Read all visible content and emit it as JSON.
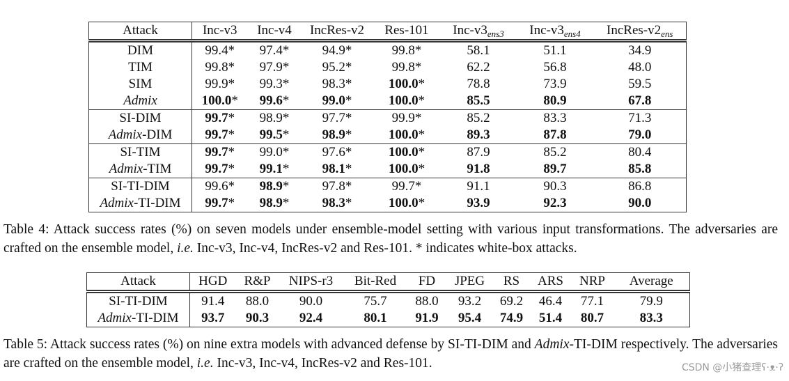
{
  "table4": {
    "header": [
      [
        {
          "text": "Attack"
        }
      ],
      [
        {
          "text": "Inc-v3"
        }
      ],
      [
        {
          "text": "Inc-v4"
        }
      ],
      [
        {
          "text": "IncRes-v2"
        }
      ],
      [
        {
          "text": "Res-101"
        }
      ],
      [
        {
          "text": "Inc-v3"
        },
        {
          "text": "ens3",
          "sub": true
        }
      ],
      [
        {
          "text": "Inc-v3"
        },
        {
          "text": "ens4",
          "sub": true
        }
      ],
      [
        {
          "text": "IncRes-v2"
        },
        {
          "text": "ens",
          "sub": true
        }
      ]
    ],
    "groups": [
      [
        {
          "attack": [
            {
              "text": "DIM"
            }
          ],
          "cells": [
            {
              "value": "99.4",
              "mark": "*"
            },
            {
              "value": "97.4",
              "mark": "*"
            },
            {
              "value": "94.9",
              "mark": "*"
            },
            {
              "value": "99.8",
              "mark": "*"
            },
            {
              "value": "58.1"
            },
            {
              "value": "51.1"
            },
            {
              "value": "34.9"
            }
          ]
        },
        {
          "attack": [
            {
              "text": "TIM"
            }
          ],
          "cells": [
            {
              "value": "99.8",
              "mark": "*"
            },
            {
              "value": "97.9",
              "mark": "*"
            },
            {
              "value": "95.2",
              "mark": "*"
            },
            {
              "value": "99.8",
              "mark": "*"
            },
            {
              "value": "62.2"
            },
            {
              "value": "56.8"
            },
            {
              "value": "48.0"
            }
          ]
        },
        {
          "attack": [
            {
              "text": "SIM"
            }
          ],
          "cells": [
            {
              "value": "99.9",
              "mark": "*"
            },
            {
              "value": "99.3",
              "mark": "*"
            },
            {
              "value": "98.3",
              "mark": "*"
            },
            {
              "value": "100.0",
              "mark": "*",
              "bold": true
            },
            {
              "value": "78.8"
            },
            {
              "value": "73.9"
            },
            {
              "value": "59.5"
            }
          ]
        },
        {
          "attack": [
            {
              "text": "Admix",
              "italic": true
            }
          ],
          "cells": [
            {
              "value": "100.0",
              "mark": "*",
              "bold": true
            },
            {
              "value": "99.6",
              "mark": "*",
              "bold": true
            },
            {
              "value": "99.0",
              "mark": "*",
              "bold": true
            },
            {
              "value": "100.0",
              "mark": "*",
              "bold": true
            },
            {
              "value": "85.5",
              "bold": true
            },
            {
              "value": "80.9",
              "bold": true
            },
            {
              "value": "67.8",
              "bold": true
            }
          ]
        }
      ],
      [
        {
          "attack": [
            {
              "text": "SI-DIM"
            }
          ],
          "cells": [
            {
              "value": "99.7",
              "mark": "*",
              "bold": true
            },
            {
              "value": "98.9",
              "mark": "*"
            },
            {
              "value": "97.7",
              "mark": "*"
            },
            {
              "value": "99.9",
              "mark": "*"
            },
            {
              "value": "85.2"
            },
            {
              "value": "83.3"
            },
            {
              "value": "71.3"
            }
          ]
        },
        {
          "attack": [
            {
              "text": "Admix",
              "italic": true
            },
            {
              "text": "-DIM"
            }
          ],
          "cells": [
            {
              "value": "99.7",
              "mark": "*",
              "bold": true
            },
            {
              "value": "99.5",
              "mark": "*",
              "bold": true
            },
            {
              "value": "98.9",
              "mark": "*",
              "bold": true
            },
            {
              "value": "100.0",
              "mark": "*",
              "bold": true
            },
            {
              "value": "89.3",
              "bold": true
            },
            {
              "value": "87.8",
              "bold": true
            },
            {
              "value": "79.0",
              "bold": true
            }
          ]
        }
      ],
      [
        {
          "attack": [
            {
              "text": "SI-TIM"
            }
          ],
          "cells": [
            {
              "value": "99.7",
              "mark": "*",
              "bold": true
            },
            {
              "value": "99.0",
              "mark": "*"
            },
            {
              "value": "97.6",
              "mark": "*"
            },
            {
              "value": "100.0",
              "mark": "*",
              "bold": true
            },
            {
              "value": "87.9"
            },
            {
              "value": "85.2"
            },
            {
              "value": "80.4"
            }
          ]
        },
        {
          "attack": [
            {
              "text": "Admix",
              "italic": true
            },
            {
              "text": "-TIM"
            }
          ],
          "cells": [
            {
              "value": "99.7",
              "mark": "*",
              "bold": true
            },
            {
              "value": "99.1",
              "mark": "*",
              "bold": true
            },
            {
              "value": "98.1",
              "mark": "*",
              "bold": true
            },
            {
              "value": "100.0",
              "mark": "*",
              "bold": true
            },
            {
              "value": "91.8",
              "bold": true
            },
            {
              "value": "89.7",
              "bold": true
            },
            {
              "value": "85.8",
              "bold": true
            }
          ]
        }
      ],
      [
        {
          "attack": [
            {
              "text": "SI-TI-DIM"
            }
          ],
          "cells": [
            {
              "value": "99.6",
              "mark": "*"
            },
            {
              "value": "98.9",
              "mark": "*",
              "bold": true
            },
            {
              "value": "97.8",
              "mark": "*"
            },
            {
              "value": "99.7",
              "mark": "*"
            },
            {
              "value": "91.1"
            },
            {
              "value": "90.3"
            },
            {
              "value": "86.8"
            }
          ]
        },
        {
          "attack": [
            {
              "text": "Admix",
              "italic": true
            },
            {
              "text": "-TI-DIM"
            }
          ],
          "cells": [
            {
              "value": "99.7",
              "mark": "*",
              "bold": true
            },
            {
              "value": "98.9",
              "mark": "*",
              "bold": true
            },
            {
              "value": "98.3",
              "mark": "*",
              "bold": true
            },
            {
              "value": "100.0",
              "mark": "*",
              "bold": true
            },
            {
              "value": "93.9",
              "bold": true
            },
            {
              "value": "92.3",
              "bold": true
            },
            {
              "value": "90.0",
              "bold": true
            }
          ]
        }
      ]
    ],
    "caption": [
      {
        "text": "Table 4: Attack success rates (%) on seven models under ensemble-model setting with various input transformations. The adversaries are crafted on the ensemble model, "
      },
      {
        "text": "i.e.",
        "italic": true
      },
      {
        "text": " Inc-v3, Inc-v4, IncRes-v2 and Res-101. * indicates white-box attacks."
      }
    ]
  },
  "table5": {
    "header": [
      [
        {
          "text": "Attack"
        }
      ],
      [
        {
          "text": "HGD"
        }
      ],
      [
        {
          "text": "R&P"
        }
      ],
      [
        {
          "text": "NIPS-r3"
        }
      ],
      [
        {
          "text": "Bit-Red"
        }
      ],
      [
        {
          "text": "FD"
        }
      ],
      [
        {
          "text": "JPEG"
        }
      ],
      [
        {
          "text": "RS"
        }
      ],
      [
        {
          "text": "ARS"
        }
      ],
      [
        {
          "text": "NRP"
        }
      ],
      [
        {
          "text": "Average"
        }
      ]
    ],
    "groups": [
      [
        {
          "attack": [
            {
              "text": "SI-TI-DIM"
            }
          ],
          "cells": [
            {
              "value": "91.4"
            },
            {
              "value": "88.0"
            },
            {
              "value": "90.0"
            },
            {
              "value": "75.7"
            },
            {
              "value": "88.0"
            },
            {
              "value": "93.2"
            },
            {
              "value": "69.2"
            },
            {
              "value": "46.4"
            },
            {
              "value": "77.1"
            },
            {
              "value": "79.9"
            }
          ]
        },
        {
          "attack": [
            {
              "text": "Admix",
              "italic": true
            },
            {
              "text": "-TI-DIM"
            }
          ],
          "cells": [
            {
              "value": "93.7",
              "bold": true
            },
            {
              "value": "90.3",
              "bold": true
            },
            {
              "value": "92.4",
              "bold": true
            },
            {
              "value": "80.1",
              "bold": true
            },
            {
              "value": "91.9",
              "bold": true
            },
            {
              "value": "95.4",
              "bold": true
            },
            {
              "value": "74.9",
              "bold": true
            },
            {
              "value": "51.4",
              "bold": true
            },
            {
              "value": "80.7",
              "bold": true
            },
            {
              "value": "83.3",
              "bold": true
            }
          ]
        }
      ]
    ],
    "caption": [
      {
        "text": "Table 5: Attack success rates (%) on nine extra models with advanced defense by SI-TI-DIM and "
      },
      {
        "text": "Admix",
        "italic": true
      },
      {
        "text": "-TI-DIM respectively. The adversaries are crafted on the ensemble model, "
      },
      {
        "text": "i.e.",
        "italic": true
      },
      {
        "text": " Inc-v3, Inc-v4, IncRes-v2 and Res-101."
      }
    ]
  },
  "watermark": "CSDN @小猪查理ʕ·ᴥ·ʔ"
}
